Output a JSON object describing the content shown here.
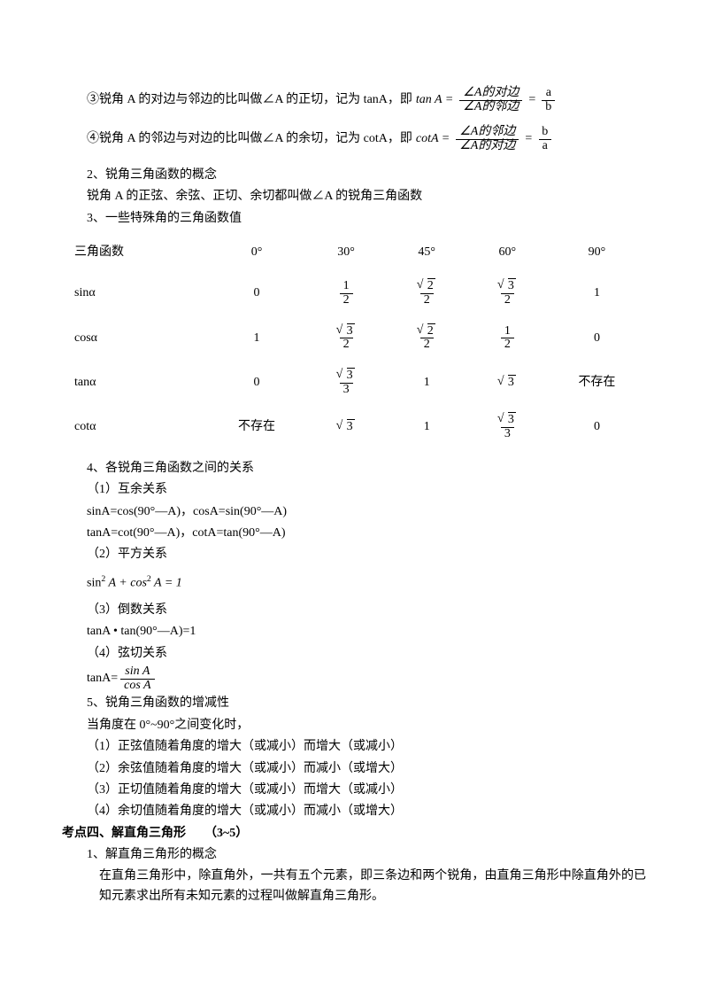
{
  "para": {
    "l1_lead": "③锐角 A 的对边与邻边的比叫做∠A 的正切，记为 tanA，即 ",
    "l1_lhs": "tan A =",
    "l1_f1_num": "∠A的对边",
    "l1_f1_den": "∠A的邻边",
    "l1_eq": "=",
    "l1_f2_num": "a",
    "l1_f2_den": "b",
    "l2_lead": "④锐角 A 的邻边与对边的比叫做∠A 的余切，记为 cotA，即 ",
    "l2_lhs": "cotA =",
    "l2_f1_num": "∠A的邻边",
    "l2_f1_den": "∠A的对边",
    "l2_eq": "=",
    "l2_f2_num": "b",
    "l2_f2_den": "a",
    "l3": "2、锐角三角函数的概念",
    "l4": "锐角 A 的正弦、余弦、正切、余切都叫做∠A 的锐角三角函数",
    "l5": "3、一些特殊角的三角函数值"
  },
  "table": {
    "header": [
      "三角函数",
      "0°",
      "30°",
      "45°",
      "60°",
      "90°"
    ],
    "rows": [
      {
        "label": "sinα",
        "cells": [
          {
            "t": "plain",
            "v": "0"
          },
          {
            "t": "frac",
            "n": "1",
            "d": "2"
          },
          {
            "t": "sqrtfrac",
            "n": "2",
            "d": "2"
          },
          {
            "t": "sqrtfrac",
            "n": "3",
            "d": "2"
          },
          {
            "t": "plain",
            "v": "1"
          }
        ]
      },
      {
        "label": "cosα",
        "cells": [
          {
            "t": "plain",
            "v": "1"
          },
          {
            "t": "sqrtfrac",
            "n": "3",
            "d": "2"
          },
          {
            "t": "sqrtfrac",
            "n": "2",
            "d": "2"
          },
          {
            "t": "frac",
            "n": "1",
            "d": "2"
          },
          {
            "t": "plain",
            "v": "0"
          }
        ]
      },
      {
        "label": "tanα",
        "cells": [
          {
            "t": "plain",
            "v": "0"
          },
          {
            "t": "sqrtfrac",
            "n": "3",
            "d": "3"
          },
          {
            "t": "plain",
            "v": "1"
          },
          {
            "t": "sqrt",
            "v": "3"
          },
          {
            "t": "cn",
            "v": "不存在"
          }
        ]
      },
      {
        "label": "cotα",
        "cells": [
          {
            "t": "cn",
            "v": "不存在"
          },
          {
            "t": "sqrt",
            "v": "3"
          },
          {
            "t": "plain",
            "v": "1"
          },
          {
            "t": "sqrtfrac",
            "n": "3",
            "d": "3"
          },
          {
            "t": "plain",
            "v": "0"
          }
        ]
      }
    ]
  },
  "sec2": {
    "l1": "4、各锐角三角函数之间的关系",
    "l2": "（1）互余关系",
    "l3": "sinA=cos(90°—A)，cosA=sin(90°—A)",
    "l4": "tanA=cot(90°—A)，cotA=tan(90°—A)",
    "l5": "（2）平方关系",
    "l6_pre": "sin",
    "l6_sup1": "2",
    "l6_mid": " A + cos",
    "l6_sup2": "2",
    "l6_post": " A = 1",
    "l7": "（3）倒数关系",
    "l8": "tanA • tan(90°—A)=1",
    "l9": "（4）弦切关系",
    "l10_pre": "tanA=",
    "l10_num": "sin A",
    "l10_den": "cos A",
    "l11": "5、锐角三角函数的增减性",
    "l12": "当角度在 0°~90°之间变化时，",
    "l13": "（1）正弦值随着角度的增大（或减小）而增大（或减小）",
    "l14": "（2）余弦值随着角度的增大（或减小）而减小（或增大）",
    "l15": "（3）正切值随着角度的增大（或减小）而增大（或减小）",
    "l16": "（4）余切值随着角度的增大（或减小）而减小（或增大）"
  },
  "sec3": {
    "h": "考点四、解直角三角形　　（3~5）",
    "l1": "1、解直角三角形的概念",
    "l2": "在直角三角形中，除直角外，一共有五个元素，即三条边和两个锐角，由直角三角形中除直角外的已知元素求出所有未知元素的过程叫做解直角三角形。"
  }
}
